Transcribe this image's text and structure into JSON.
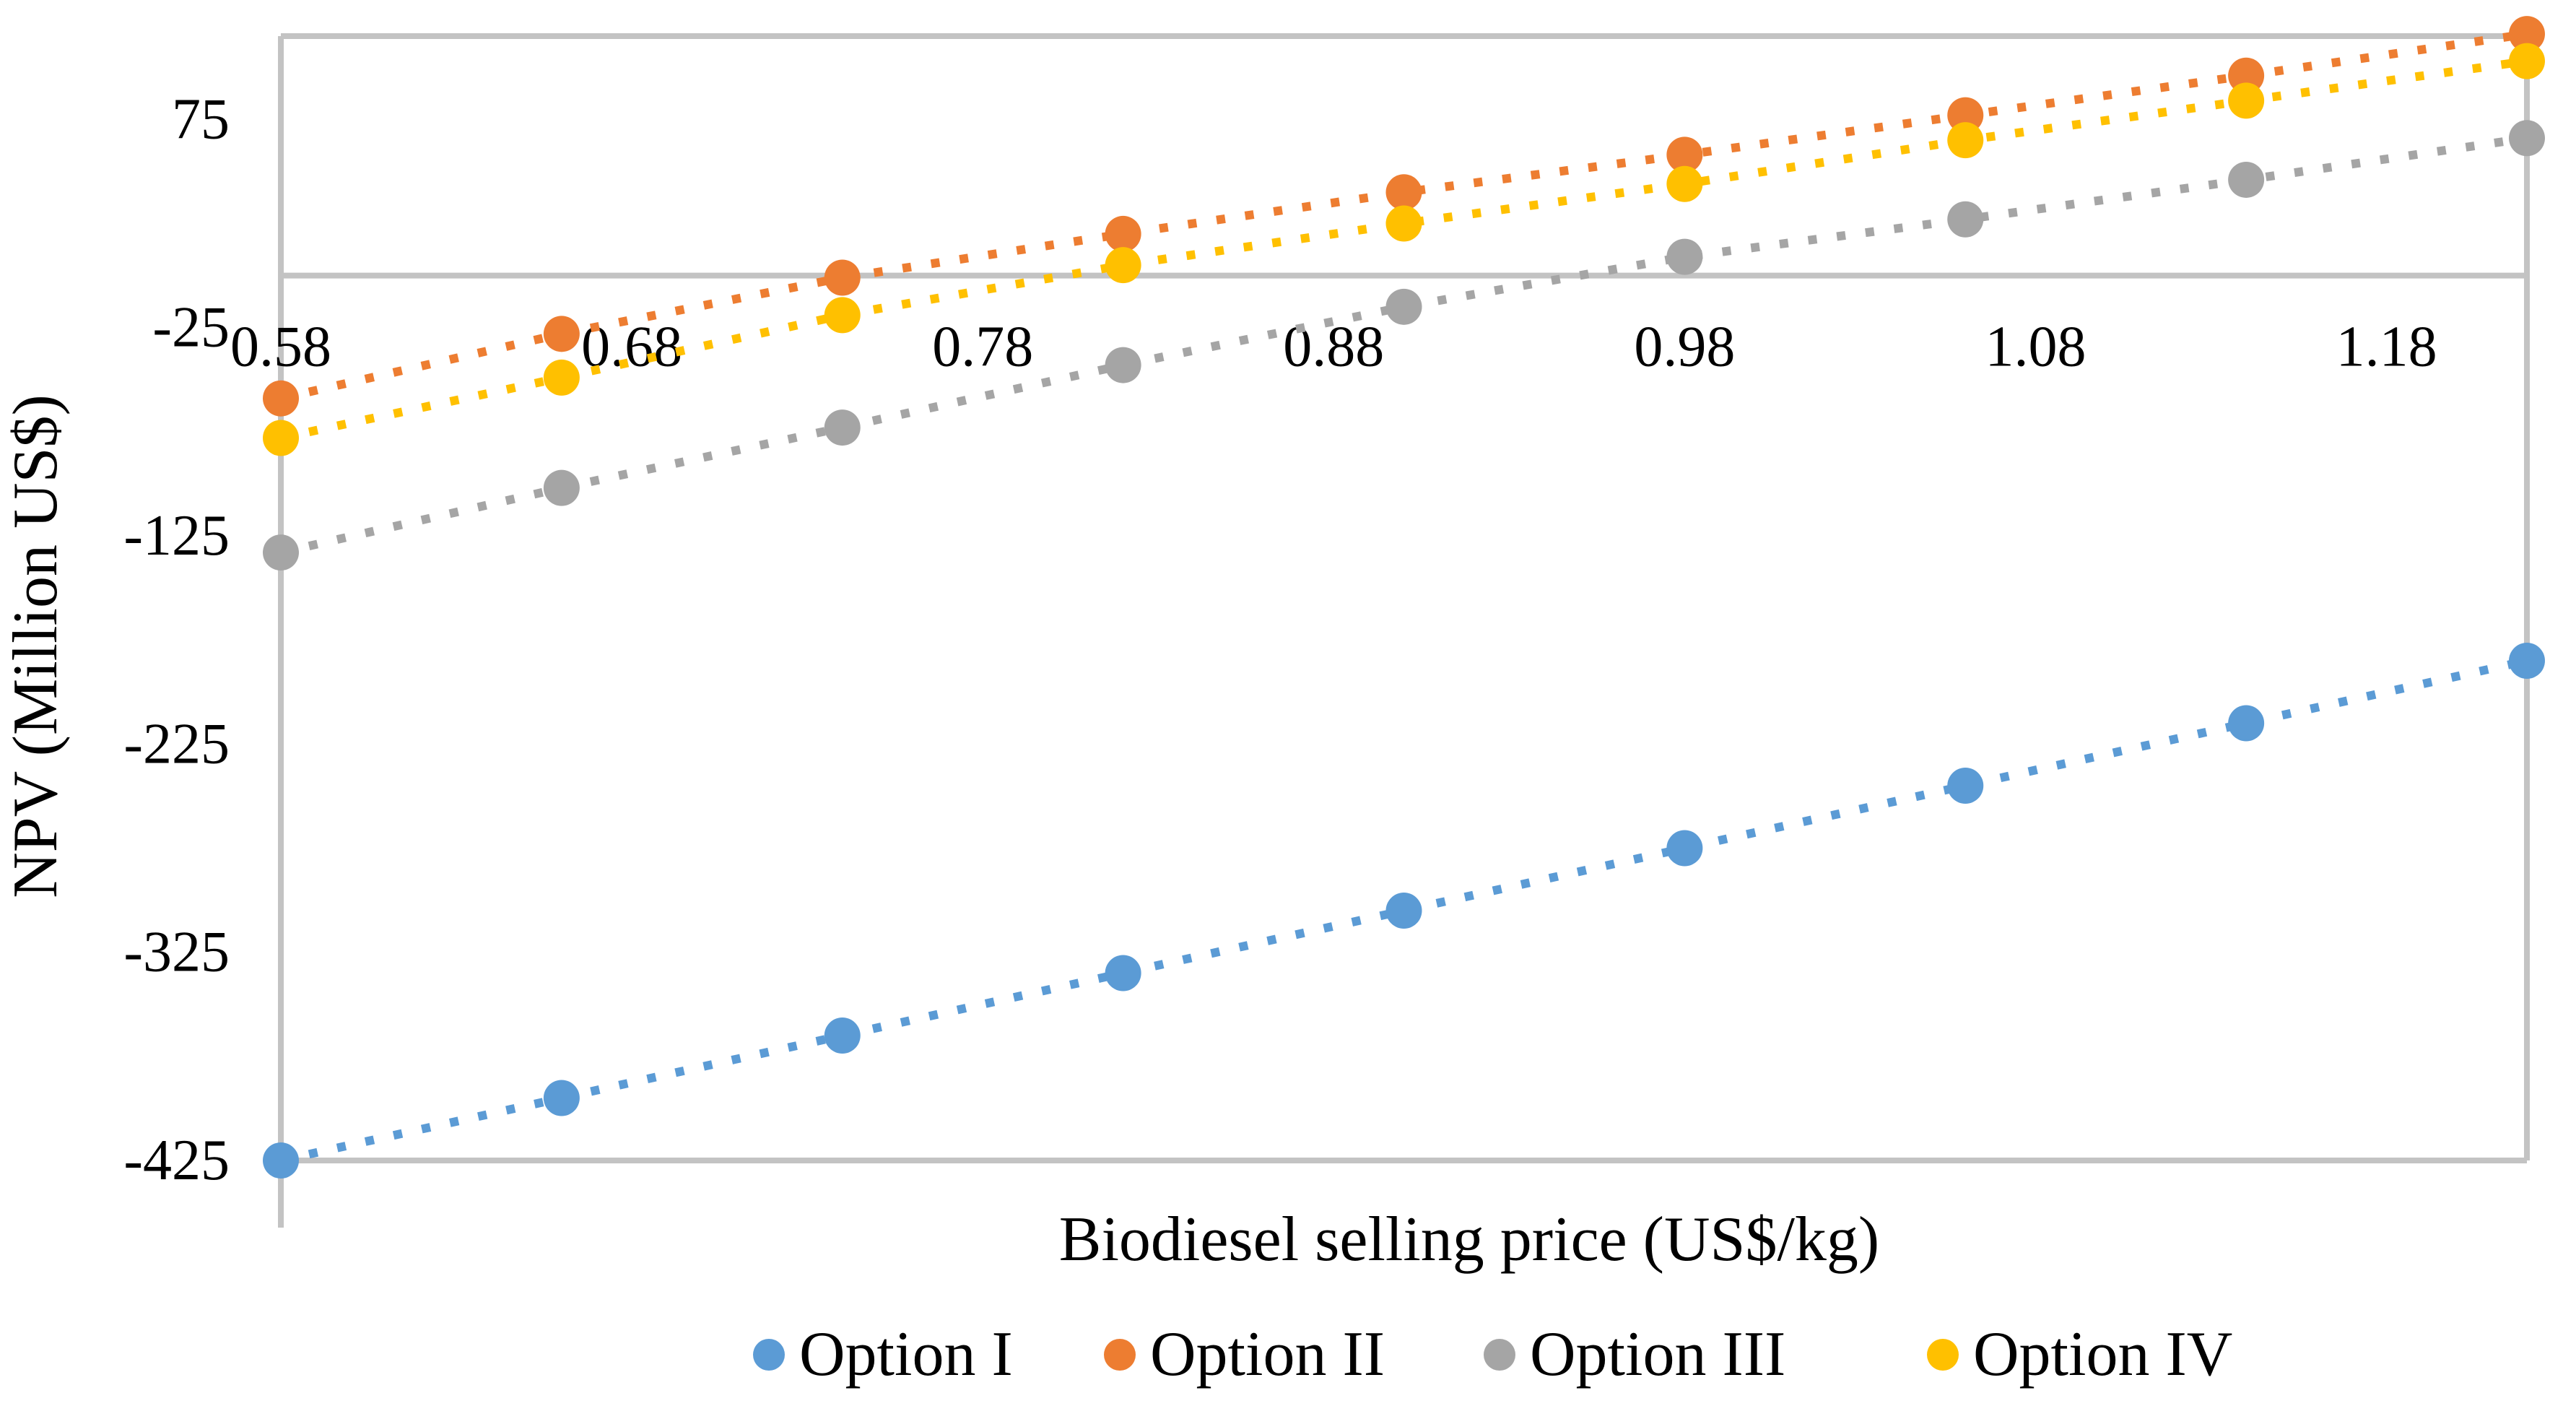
{
  "chart_data": {
    "type": "scatter",
    "title": "",
    "xlabel": "Biodiesel selling price (US$/kg)",
    "ylabel": "NPV (Million US$)",
    "x": [
      0.58,
      0.66,
      0.74,
      0.82,
      0.9,
      0.98,
      1.06,
      1.14,
      1.22
    ],
    "series": [
      {
        "name": "Option I",
        "color": "#5B9BD5",
        "values": [
          -425,
          -395,
          -365,
          -335,
          -305,
          -275,
          -245,
          -215,
          -185
        ]
      },
      {
        "name": "Option II",
        "color": "#ED7D31",
        "values": [
          -59,
          -28,
          -1,
          20,
          40,
          58,
          77,
          96,
          116
        ]
      },
      {
        "name": "Option III",
        "color": "#A5A5A5",
        "values": [
          -133,
          -102,
          -73,
          -43,
          -15,
          9,
          27,
          46,
          66
        ]
      },
      {
        "name": "Option IV",
        "color": "#FFC000",
        "values": [
          -78,
          -49,
          -19,
          5,
          25,
          44,
          65,
          84,
          103
        ]
      }
    ],
    "x_ticks": [
      0.58,
      0.68,
      0.78,
      0.88,
      0.98,
      1.08,
      1.18
    ],
    "y_ticks": [
      75,
      -25,
      -125,
      -225,
      -325,
      -425
    ],
    "xlim": [
      0.58,
      1.22
    ],
    "ylim": [
      -425,
      115
    ],
    "grid": "zero-line-only",
    "axis_color": "#C3C3C3",
    "line_style": "dotted",
    "marker": "circle",
    "legend_position": "bottom"
  },
  "legend": {
    "items": [
      {
        "label": "Option I",
        "color": "#5B9BD5"
      },
      {
        "label": "Option II",
        "color": "#ED7D31"
      },
      {
        "label": "Option III",
        "color": "#A5A5A5"
      },
      {
        "label": "Option IV",
        "color": "#FFC000"
      }
    ]
  }
}
